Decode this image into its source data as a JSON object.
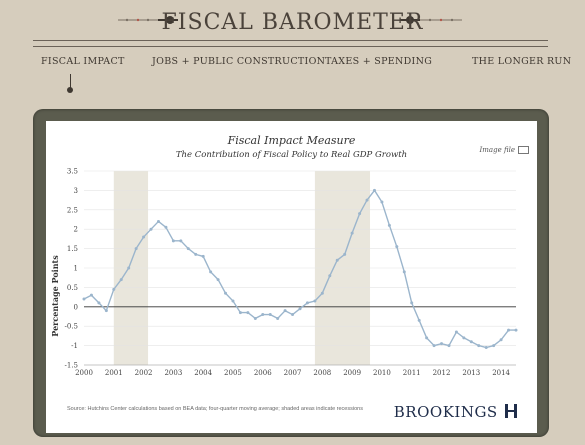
{
  "header": {
    "title": "FISCAL BAROMETER",
    "nav": [
      {
        "label": "FISCAL IMPACT",
        "active": true
      },
      {
        "label": "JOBS + PUBLIC CONSTRUCTION",
        "active": false
      },
      {
        "label": "TAXES + SPENDING",
        "active": false
      },
      {
        "label": "THE LONGER RUN",
        "active": false
      }
    ]
  },
  "panel": {
    "image_file_label": "Image file",
    "source_note": "Source: Hutchins Center calculations based on BEA data; four-quarter moving average; shaded areas indicate recessions",
    "brand": "BROOKINGS"
  },
  "colors": {
    "background": "#d6cdbd",
    "frame": "#5b5c4e",
    "line": "#9bb5cc",
    "recession_shade": "#e9e6dc",
    "accent_red": "#b0574a"
  },
  "chart_data": {
    "type": "line",
    "title": "Fiscal Impact Measure",
    "subtitle": "The Contribution of Fiscal Policy to Real GDP Growth",
    "xlabel": "",
    "ylabel": "Percentage Points",
    "xlim": [
      2000,
      2014.5
    ],
    "ylim": [
      -1.5,
      3.5
    ],
    "x_ticks": [
      "2000",
      "2001",
      "2002",
      "2003",
      "2004",
      "2005",
      "2006",
      "2007",
      "2008",
      "2009",
      "2010",
      "2011",
      "2012",
      "2013",
      "2014"
    ],
    "y_ticks": [
      "3.5",
      "3",
      "2.5",
      "2",
      "1.5",
      "1",
      "0.5",
      "0",
      "-0.5",
      "-1",
      "-1.5"
    ],
    "grid": true,
    "recessions": [
      [
        2001.0,
        2002.15
      ],
      [
        2007.75,
        2009.6
      ]
    ],
    "series": [
      {
        "x": [
          2000.0,
          2000.25,
          2000.5,
          2000.75,
          2001.0,
          2001.25,
          2001.5,
          2001.75,
          2002.0,
          2002.25,
          2002.5,
          2002.75,
          2003.0,
          2003.25,
          2003.5,
          2003.75,
          2004.0,
          2004.25,
          2004.5,
          2004.75,
          2005.0,
          2005.25,
          2005.5,
          2005.75,
          2006.0,
          2006.25,
          2006.5,
          2006.75,
          2007.0,
          2007.25,
          2007.5,
          2007.75,
          2008.0,
          2008.25,
          2008.5,
          2008.75,
          2009.0,
          2009.25,
          2009.5,
          2009.75,
          2010.0,
          2010.25,
          2010.5,
          2010.75,
          2011.0,
          2011.25,
          2011.5,
          2011.75,
          2012.0,
          2012.25,
          2012.5,
          2012.75,
          2013.0,
          2013.25,
          2013.5,
          2013.75,
          2014.0,
          2014.25,
          2014.5
        ],
        "y": [
          0.2,
          0.3,
          0.1,
          -0.1,
          0.45,
          0.7,
          1.0,
          1.5,
          1.8,
          2.0,
          2.2,
          2.05,
          1.7,
          1.7,
          1.5,
          1.35,
          1.3,
          0.9,
          0.7,
          0.35,
          0.15,
          -0.15,
          -0.15,
          -0.3,
          -0.2,
          -0.2,
          -0.3,
          -0.1,
          -0.2,
          -0.05,
          0.1,
          0.15,
          0.35,
          0.8,
          1.2,
          1.35,
          1.9,
          2.4,
          2.75,
          3.0,
          2.7,
          2.1,
          1.55,
          0.9,
          0.1,
          -0.35,
          -0.8,
          -1.0,
          -0.95,
          -1.0,
          -0.65,
          -0.8,
          -0.9,
          -1.0,
          -1.05,
          -1.0,
          -0.85,
          -0.6,
          -0.6
        ]
      }
    ]
  }
}
